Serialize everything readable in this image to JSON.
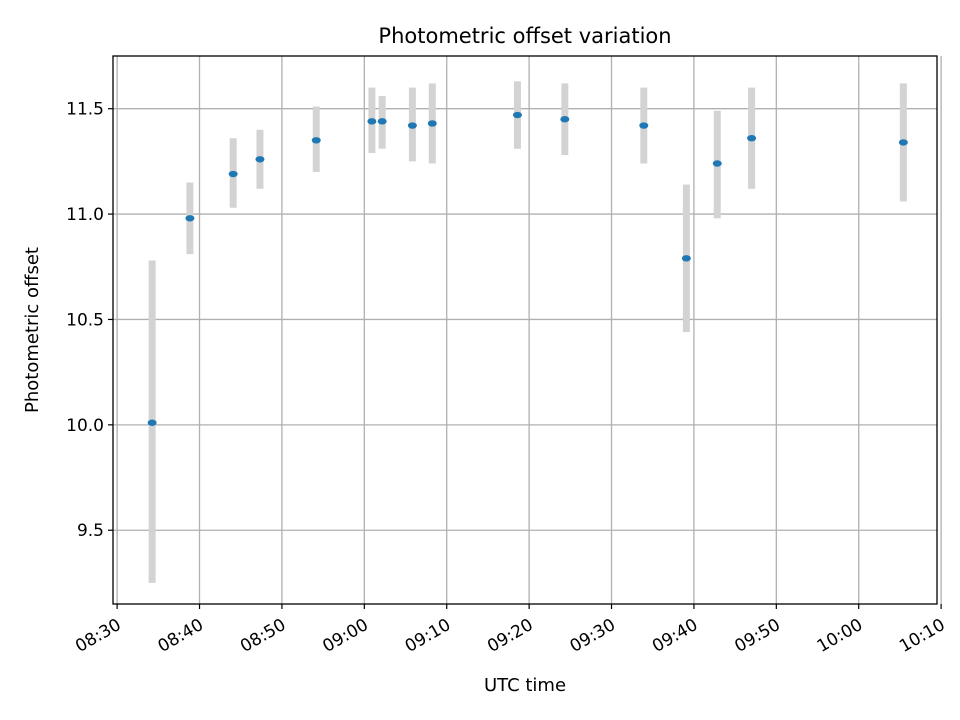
{
  "chart_data": {
    "type": "scatter",
    "title": "Photometric offset variation",
    "xlabel": "UTC time",
    "ylabel": "Photometric offset",
    "x_unit": "time of day (HH:MM, UTC)",
    "xlim": [
      "08:29:30",
      "10:09:30"
    ],
    "ylim": [
      9.15,
      11.75
    ],
    "grid": true,
    "x_ticks": [
      "08:30",
      "08:40",
      "08:50",
      "09:00",
      "09:10",
      "09:20",
      "09:30",
      "09:40",
      "09:50",
      "10:00",
      "10:10"
    ],
    "y_ticks": [
      9.5,
      10.0,
      10.5,
      11.0,
      11.5
    ],
    "y_tick_labels": [
      "9.5",
      "10.0",
      "10.5",
      "11.0",
      "11.5"
    ],
    "marker_color": "#1f77b4",
    "errorbar_color": "#d3d3d3",
    "points": [
      {
        "time": "08:34:15",
        "y": 10.01,
        "ylow": 9.25,
        "yhigh": 10.78
      },
      {
        "time": "08:38:50",
        "y": 10.98,
        "ylow": 10.81,
        "yhigh": 11.15
      },
      {
        "time": "08:44:05",
        "y": 11.19,
        "ylow": 11.03,
        "yhigh": 11.36
      },
      {
        "time": "08:47:20",
        "y": 11.26,
        "ylow": 11.12,
        "yhigh": 11.4
      },
      {
        "time": "08:54:10",
        "y": 11.35,
        "ylow": 11.2,
        "yhigh": 11.51
      },
      {
        "time": "09:00:55",
        "y": 11.44,
        "ylow": 11.29,
        "yhigh": 11.6
      },
      {
        "time": "09:02:10",
        "y": 11.44,
        "ylow": 11.31,
        "yhigh": 11.56
      },
      {
        "time": "09:05:50",
        "y": 11.42,
        "ylow": 11.25,
        "yhigh": 11.6
      },
      {
        "time": "09:08:15",
        "y": 11.43,
        "ylow": 11.24,
        "yhigh": 11.62
      },
      {
        "time": "09:18:35",
        "y": 11.47,
        "ylow": 11.31,
        "yhigh": 11.63
      },
      {
        "time": "09:24:20",
        "y": 11.45,
        "ylow": 11.28,
        "yhigh": 11.62
      },
      {
        "time": "09:33:55",
        "y": 11.42,
        "ylow": 11.24,
        "yhigh": 11.6
      },
      {
        "time": "09:39:05",
        "y": 10.79,
        "ylow": 10.44,
        "yhigh": 11.14
      },
      {
        "time": "09:42:50",
        "y": 11.24,
        "ylow": 10.98,
        "yhigh": 11.49
      },
      {
        "time": "09:47:00",
        "y": 11.36,
        "ylow": 11.12,
        "yhigh": 11.6
      },
      {
        "time": "10:05:25",
        "y": 11.34,
        "ylow": 11.06,
        "yhigh": 11.62
      }
    ]
  }
}
